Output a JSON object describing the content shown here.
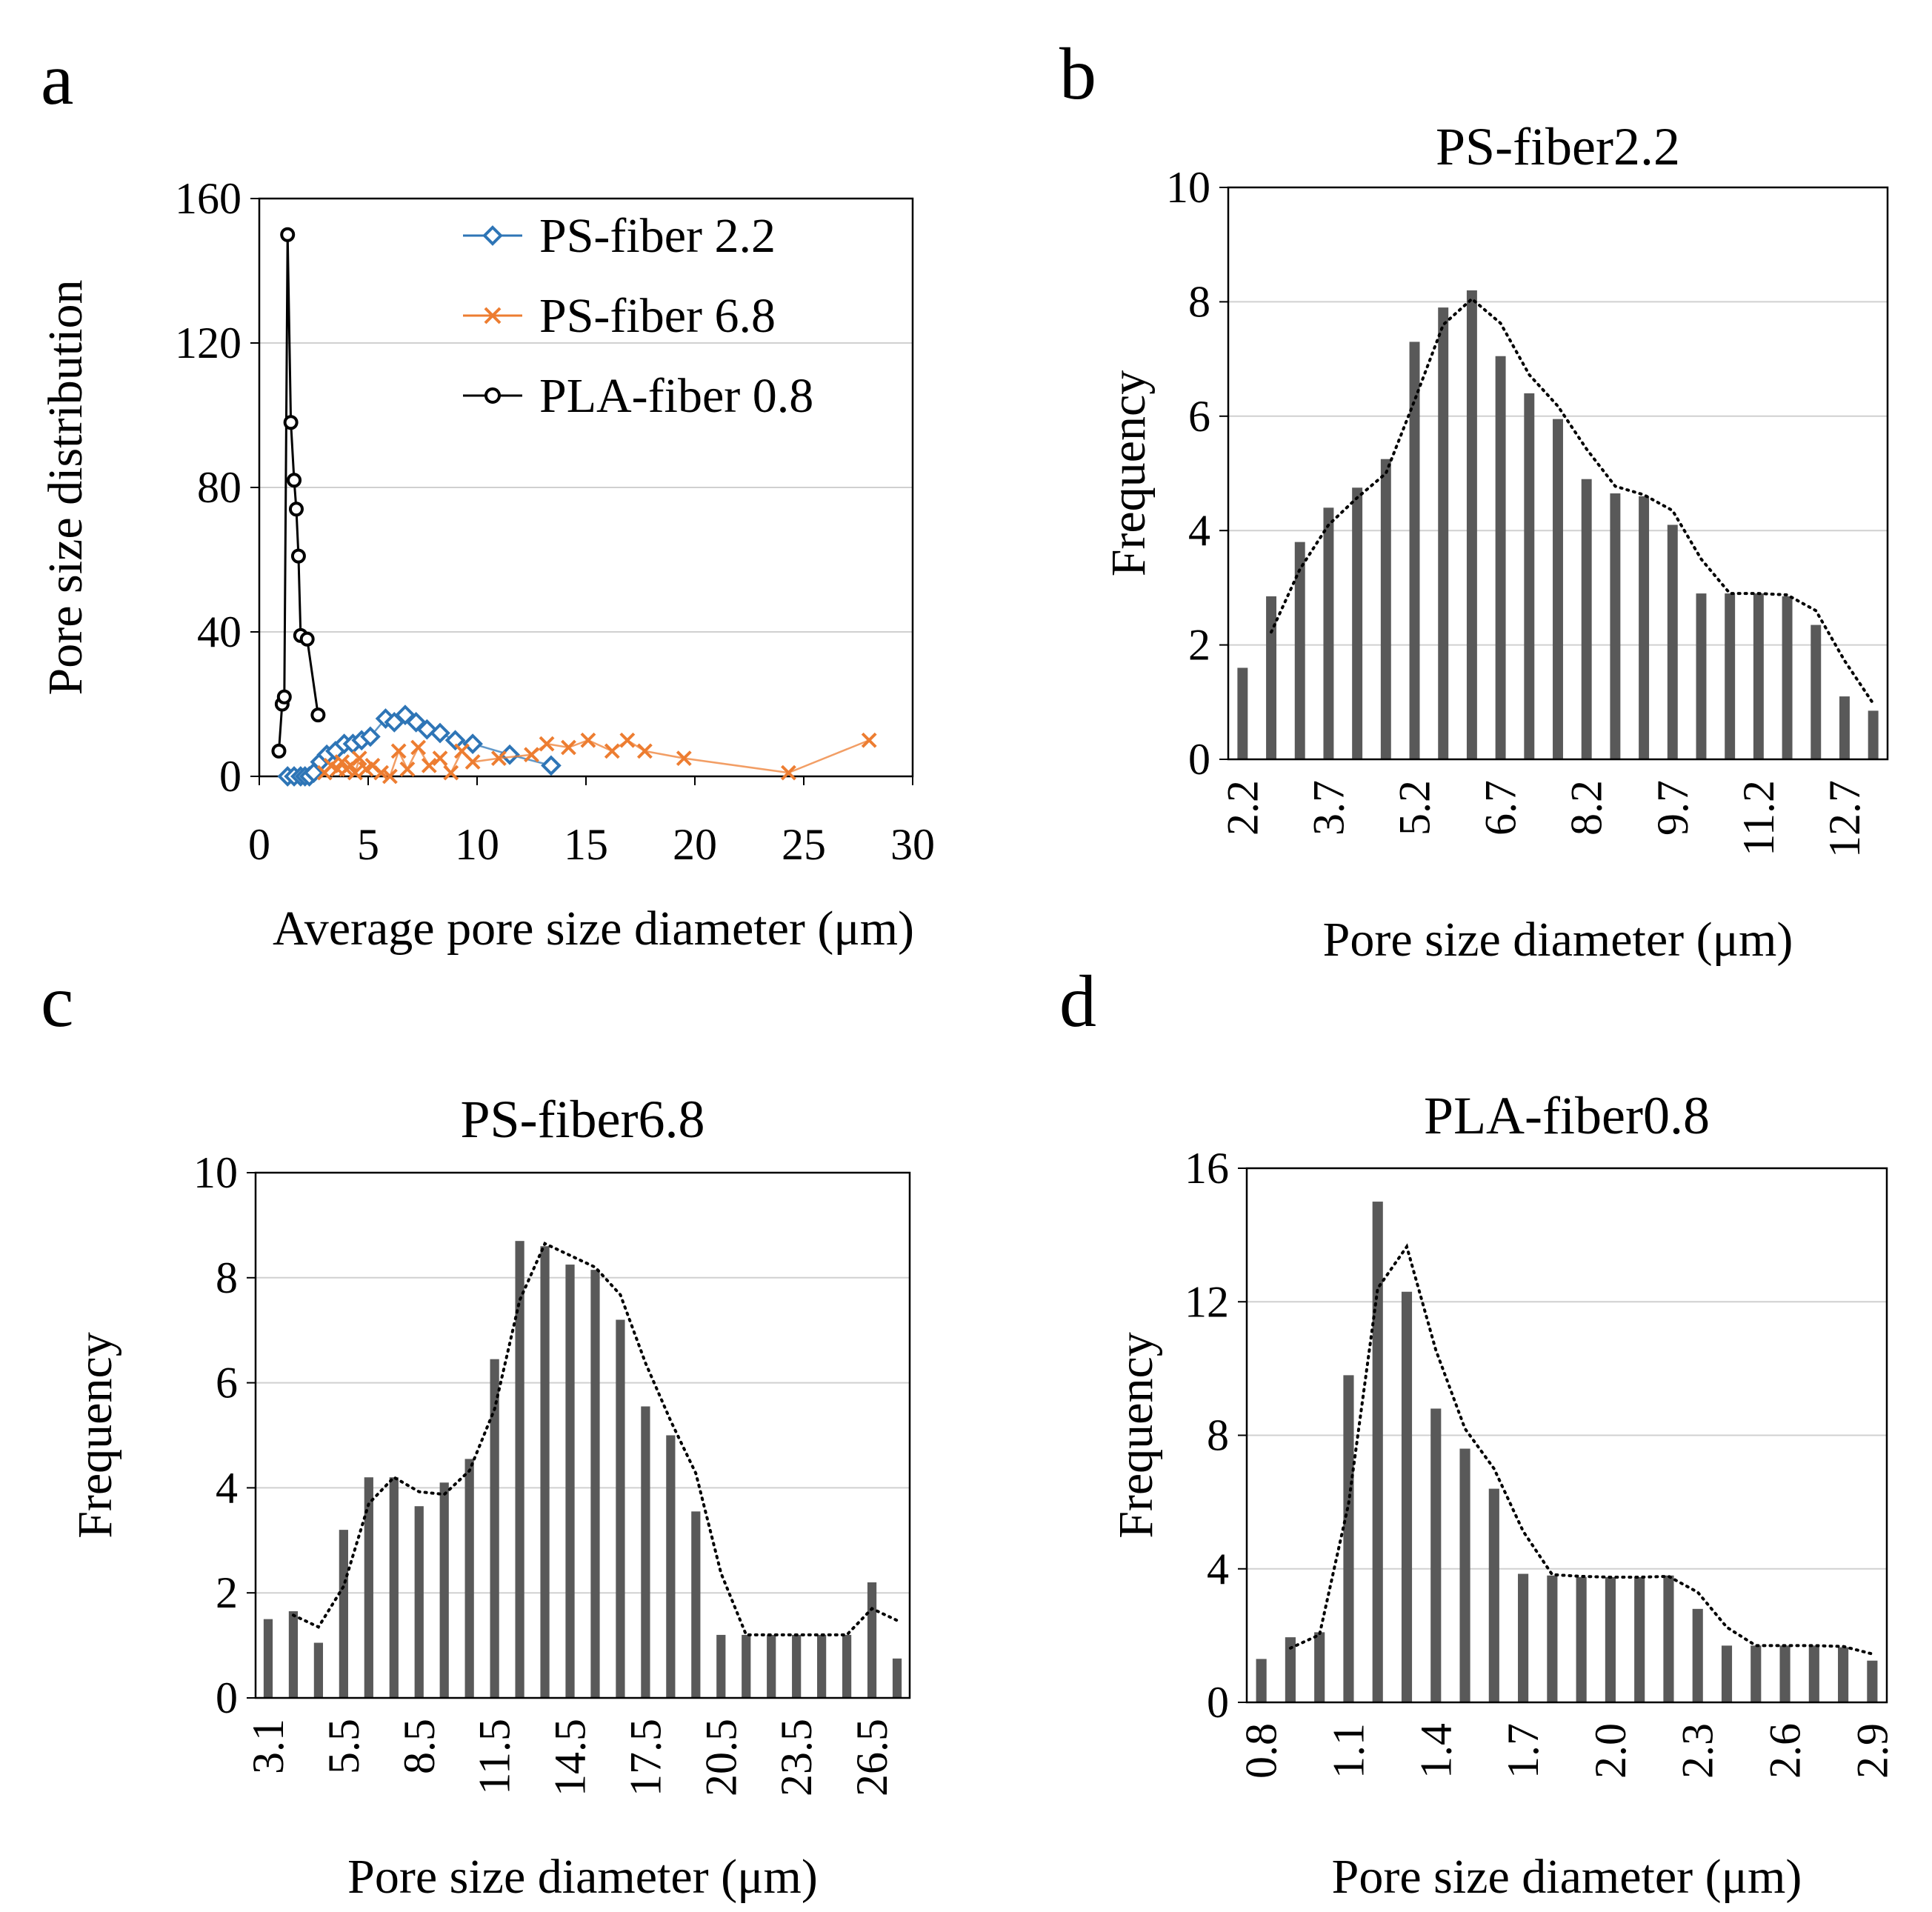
{
  "chart_data": [
    {
      "panel": "a",
      "type": "line",
      "xlabel": "Average pore size diameter (μm)",
      "ylabel": "Pore size distribution",
      "xlim": [
        0,
        30
      ],
      "ylim": [
        0,
        160
      ],
      "xticks": [
        0,
        5,
        10,
        15,
        20,
        25,
        30
      ],
      "yticks": [
        0,
        40,
        80,
        120,
        160
      ],
      "grid": "horizontal",
      "legend_position": "top-right",
      "series": [
        {
          "name": "PS-fiber 2.2",
          "color": "#2E75B6",
          "marker": "diamond",
          "x": [
            1.3,
            1.6,
            1.9,
            2.1,
            2.3,
            2.5,
            2.8,
            3.1,
            3.5,
            3.9,
            4.3,
            4.7,
            5.1,
            5.8,
            6.2,
            6.7,
            7.2,
            7.7,
            8.3,
            9.0,
            9.8,
            11.5,
            13.4
          ],
          "y": [
            0,
            0,
            0,
            0,
            0,
            1,
            4,
            6,
            7,
            9,
            9,
            10,
            11,
            16,
            15,
            17,
            15,
            13,
            12,
            10,
            9,
            6,
            3
          ]
        },
        {
          "name": "PS-fiber 6.8",
          "color": "#ED7D31",
          "marker": "x",
          "x": [
            3.0,
            3.3,
            3.6,
            3.8,
            4.0,
            4.2,
            4.4,
            4.6,
            4.9,
            5.2,
            5.6,
            6.0,
            6.4,
            6.8,
            7.3,
            7.8,
            8.3,
            8.8,
            9.3,
            9.8,
            11.0,
            12.5,
            13.2,
            14.2,
            15.1,
            16.2,
            16.9,
            17.7,
            19.5,
            24.3,
            28.0
          ],
          "y": [
            1,
            3,
            2,
            4,
            2,
            3,
            1,
            5,
            2,
            3,
            1,
            0,
            7,
            2,
            8,
            3,
            5,
            1,
            7,
            4,
            5,
            6,
            9,
            8,
            10,
            7,
            10,
            7,
            5,
            1,
            10
          ]
        },
        {
          "name": "PLA-fiber 0.8",
          "color": "#000000",
          "marker": "circle",
          "x": [
            0.9,
            1.05,
            1.15,
            1.3,
            1.45,
            1.6,
            1.7,
            1.8,
            1.9,
            2.2,
            2.7
          ],
          "y": [
            7,
            20,
            22,
            150,
            98,
            82,
            74,
            61,
            39,
            38,
            17
          ]
        }
      ]
    },
    {
      "panel": "b",
      "type": "bar",
      "title": "PS-fiber2.2",
      "xlabel": "Pore size diameter (μm)",
      "ylabel": "Frequency",
      "ylim": [
        0,
        10
      ],
      "yticks": [
        0,
        2,
        4,
        6,
        8,
        10
      ],
      "xtick_labels": [
        "2.2",
        "3.7",
        "5.2",
        "6.7",
        "8.2",
        "9.7",
        "11.2",
        "12.7"
      ],
      "bar_color": "#595959",
      "trendline": "dotted moving average",
      "values": [
        1.6,
        2.85,
        3.8,
        4.4,
        4.75,
        5.25,
        7.3,
        7.9,
        8.2,
        7.05,
        6.4,
        5.95,
        4.9,
        4.65,
        4.6,
        4.1,
        2.9,
        2.9,
        2.9,
        2.85,
        2.35,
        1.1,
        0.85
      ]
    },
    {
      "panel": "c",
      "type": "bar",
      "title": "PS-fiber6.8",
      "xlabel": "Pore size diameter (μm)",
      "ylabel": "Frequency",
      "ylim": [
        0,
        10
      ],
      "yticks": [
        0,
        2,
        4,
        6,
        8,
        10
      ],
      "xtick_labels": [
        "3.1",
        "5.5",
        "8.5",
        "11.5",
        "14.5",
        "17.5",
        "20.5",
        "23.5",
        "26.5"
      ],
      "bar_color": "#595959",
      "trendline": "dotted moving average",
      "values": [
        1.5,
        1.65,
        1.05,
        3.2,
        4.2,
        4.2,
        3.65,
        4.1,
        4.55,
        6.45,
        8.7,
        8.6,
        8.25,
        8.15,
        7.2,
        5.55,
        5.0,
        3.55,
        1.2,
        1.2,
        1.2,
        1.2,
        1.2,
        1.2,
        2.2,
        0.75
      ]
    },
    {
      "panel": "d",
      "type": "bar",
      "title": "PLA-fiber0.8",
      "xlabel": "Pore size diameter (μm)",
      "ylabel": "Frequency",
      "ylim": [
        0,
        16
      ],
      "yticks": [
        0,
        4,
        8,
        12,
        16
      ],
      "xtick_labels": [
        "0.8",
        "1.1",
        "1.4",
        "1.7",
        "2.0",
        "2.3",
        "2.6",
        "2.9"
      ],
      "bar_color": "#595959",
      "trendline": "dotted moving average",
      "values": [
        1.3,
        1.95,
        2.1,
        9.8,
        15.0,
        12.3,
        8.8,
        7.6,
        6.4,
        3.85,
        3.8,
        3.75,
        3.75,
        3.75,
        3.8,
        2.8,
        1.7,
        1.7,
        1.7,
        1.7,
        1.65,
        1.25
      ]
    }
  ]
}
